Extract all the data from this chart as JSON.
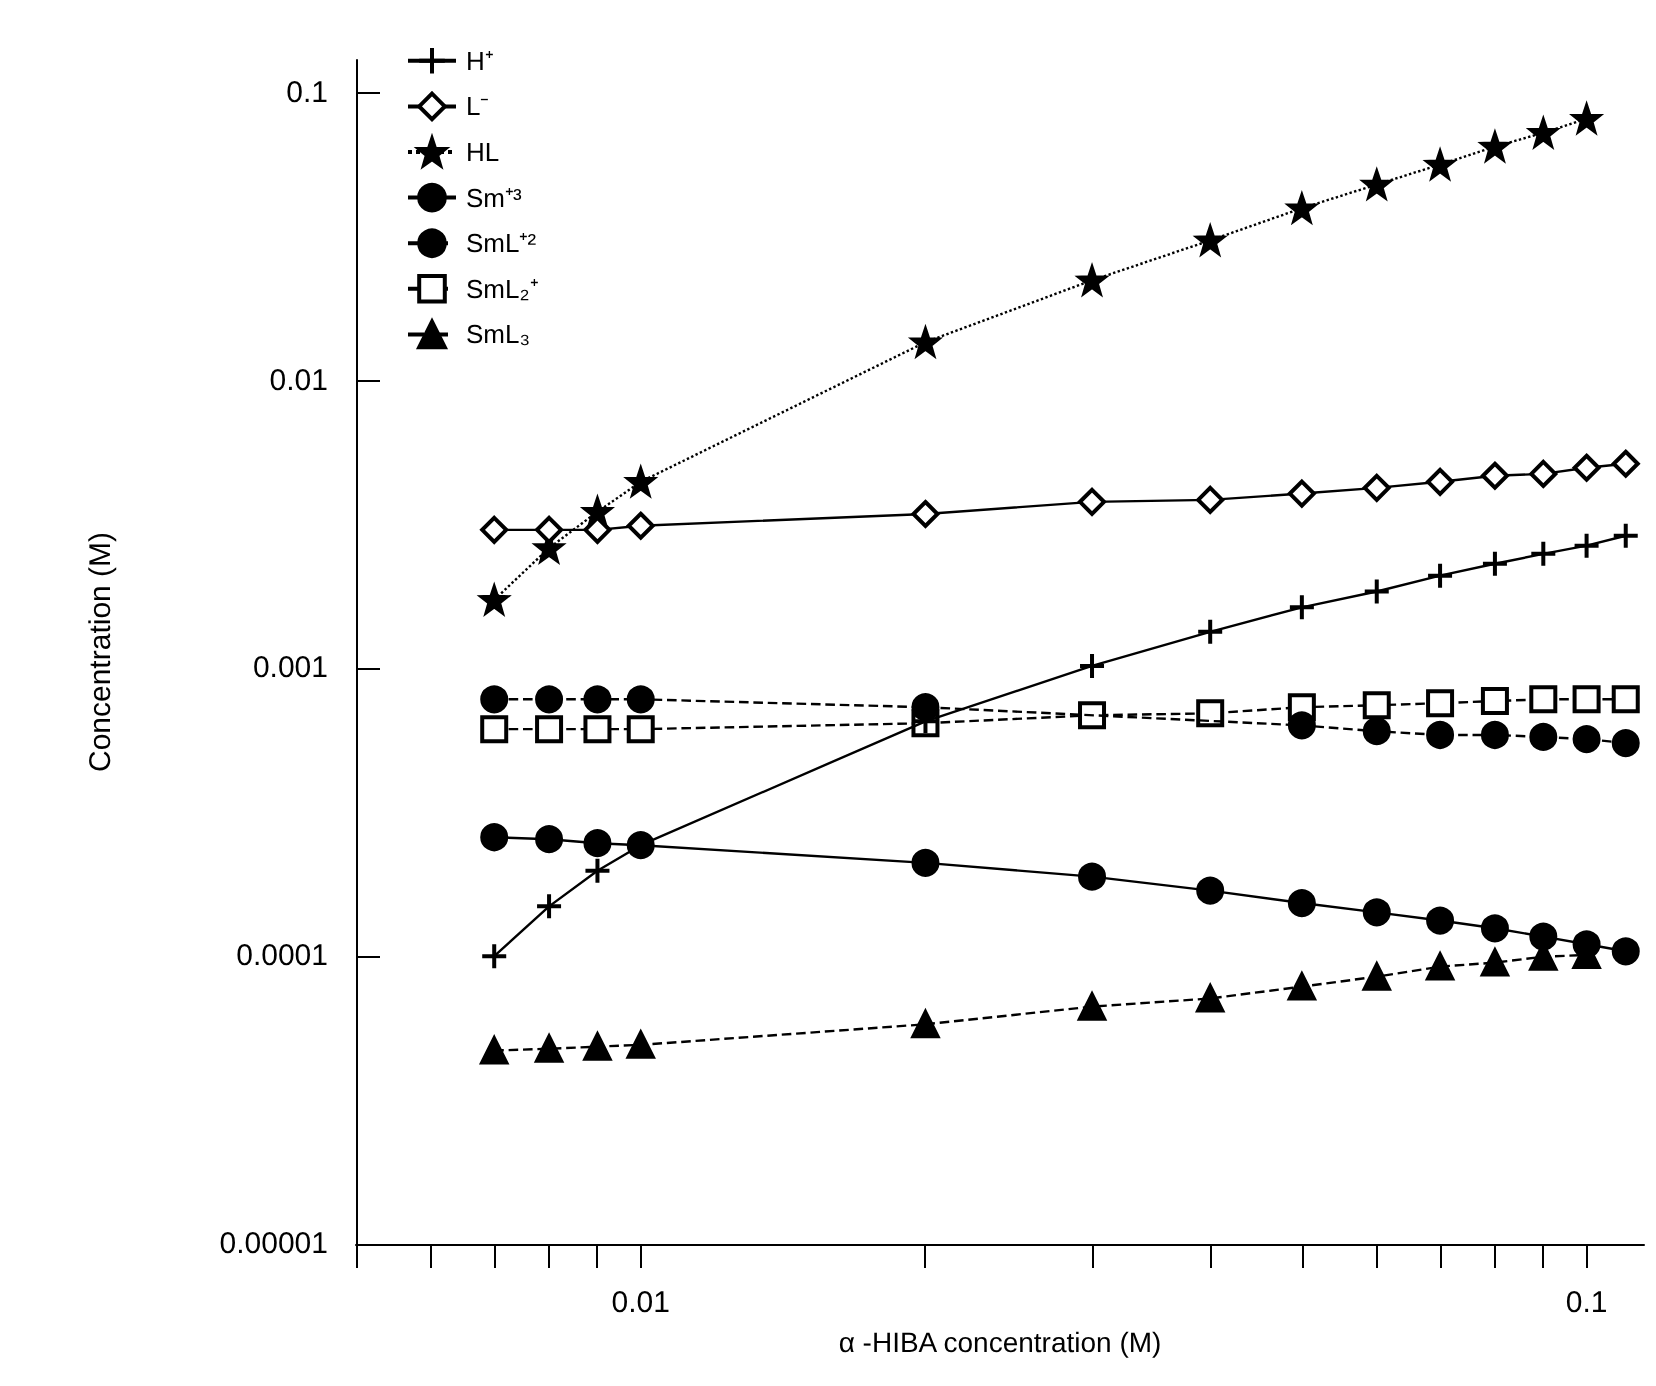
{
  "chart_data": {
    "type": "line",
    "xlabel": "α -HIBA concentration (M)",
    "ylabel": "Concentration (M)",
    "x": [
      0.007,
      0.008,
      0.009,
      0.01,
      0.02,
      0.03,
      0.04,
      0.05,
      0.06,
      0.07,
      0.08,
      0.09,
      0.1,
      0.11
    ],
    "series": [
      {
        "name": "H⁺",
        "color": "#000000",
        "marker": "cross",
        "line_style": "solid",
        "values": [
          0.0001,
          0.000149,
          0.000198,
          0.000243,
          0.000655,
          0.00102,
          0.00134,
          0.00163,
          0.00185,
          0.0021,
          0.00231,
          0.0025,
          0.00267,
          0.00289
        ]
      },
      {
        "name": "L⁻",
        "color": "#000000",
        "marker": "diamond",
        "line_style": "solid",
        "values": [
          0.00303,
          0.00303,
          0.00303,
          0.00313,
          0.00344,
          0.00379,
          0.00385,
          0.00405,
          0.00424,
          0.00445,
          0.00467,
          0.00474,
          0.00498,
          0.00514
        ]
      },
      {
        "name": "HL",
        "color": "#000000",
        "marker": "star",
        "line_style": "dotted",
        "values": [
          0.00173,
          0.00262,
          0.0035,
          0.00445,
          0.0136,
          0.0223,
          0.0307,
          0.0397,
          0.048,
          0.0563,
          0.065,
          0.0726,
          0.0813,
          null
        ]
      },
      {
        "name": "Sm⁺³",
        "color": "#000000",
        "marker": "circle",
        "line_style": "solid",
        "values": [
          0.000259,
          0.000255,
          0.000247,
          0.000243,
          0.000211,
          0.000189,
          0.000169,
          0.000153,
          0.000142,
          0.000133,
          0.000125,
          0.000117,
          0.00011,
          0.000104
        ]
      },
      {
        "name": "SmL⁺²",
        "color": "#000000",
        "marker": "circle",
        "line_style": "dashed",
        "values": [
          0.000781,
          0.000781,
          0.000781,
          0.000781,
          0.000733,
          null,
          null,
          0.000634,
          0.000605,
          0.000587,
          0.000587,
          0.000578,
          0.000568,
          0.00055
        ]
      },
      {
        "name": "SmL₂⁺",
        "color": "#000000",
        "marker": "square",
        "line_style": "dashed",
        "values": [
          0.000615,
          0.000615,
          0.000615,
          0.000615,
          0.000645,
          0.000687,
          0.000698,
          0.000733,
          0.000745,
          0.000757,
          0.00077,
          0.000781,
          0.000781,
          0.000781
        ]
      },
      {
        "name": "SmL₃",
        "color": "#000000",
        "marker": "triangle",
        "line_style": "dashed",
        "values": [
          4.7e-05,
          4.77e-05,
          4.85e-05,
          4.92e-05,
          5.8e-05,
          6.68e-05,
          7.13e-05,
          7.84e-05,
          8.49e-05,
          9.2e-05,
          9.5e-05,
          9.96e-05,
          0.000101,
          null
        ]
      }
    ],
    "log": "xy",
    "grid": false,
    "legend": "top left",
    "xlim": [
      0.005,
      0.115
    ],
    "xticks": [
      {
        "value": 0.005,
        "label": null
      },
      {
        "value": 0.006,
        "label": null
      },
      {
        "value": 0.007,
        "label": null
      },
      {
        "value": 0.008,
        "label": null
      },
      {
        "value": 0.009,
        "label": null
      },
      {
        "value": 0.01,
        "label": "0.01"
      },
      {
        "value": 0.02,
        "label": null
      },
      {
        "value": 0.03,
        "label": null
      },
      {
        "value": 0.04,
        "label": null
      },
      {
        "value": 0.05,
        "label": null
      },
      {
        "value": 0.06,
        "label": null
      },
      {
        "value": 0.07,
        "label": null
      },
      {
        "value": 0.08,
        "label": null
      },
      {
        "value": 0.09,
        "label": null
      },
      {
        "value": 0.1,
        "label": "0.1"
      }
    ],
    "ylim": [
      1e-05,
      0.13
    ],
    "yticks": [
      {
        "value": 1e-05,
        "label": "0.00001"
      },
      {
        "value": 0.0001,
        "label": "0.0001"
      },
      {
        "value": 0.001,
        "label": "0.001"
      },
      {
        "value": 0.01,
        "label": "0.01"
      },
      {
        "value": 0.1,
        "label": "0.1"
      }
    ]
  }
}
